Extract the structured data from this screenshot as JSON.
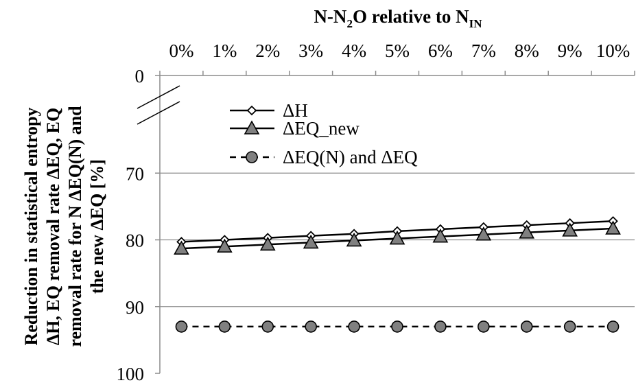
{
  "chart_data": {
    "type": "line",
    "title_main": "N-N",
    "title_sub2": "2",
    "title_mid": "O relative to N",
    "title_subIN": "IN",
    "ylabel_lines": [
      "Reduction in statistical entropy",
      "ΔH, EQ removal rate ΔEQ, EQ",
      "removal rate for N ΔEQ(N) and",
      "the new ΔEQ [%]"
    ],
    "categories": [
      "0%",
      "1%",
      "2%",
      "3%",
      "4%",
      "5%",
      "6%",
      "7%",
      "8%",
      "9%",
      "10%"
    ],
    "y_axis": {
      "reversed": true,
      "broken": true,
      "tick_labels": [
        "0",
        "70",
        "80",
        "90",
        "100"
      ],
      "visible_range": [
        60,
        100
      ]
    },
    "gridlines_at": [
      70,
      80,
      90
    ],
    "series": [
      {
        "name": "ΔH",
        "marker": "diamond",
        "marker_fill": "#ffffff",
        "line": "solid",
        "values": [
          80.3,
          80.0,
          79.7,
          79.4,
          79.1,
          78.7,
          78.4,
          78.1,
          77.8,
          77.5,
          77.2
        ]
      },
      {
        "name": "ΔEQ_new",
        "marker": "triangle",
        "marker_fill": "#808080",
        "line": "solid",
        "values": [
          81.3,
          81.0,
          80.7,
          80.4,
          80.1,
          79.8,
          79.5,
          79.2,
          78.9,
          78.6,
          78.3
        ]
      },
      {
        "name": "ΔEQ(N) and ΔEQ",
        "marker": "circle",
        "marker_fill": "#808080",
        "line": "dashed",
        "values": [
          93.0,
          93.0,
          93.0,
          93.0,
          93.0,
          93.0,
          93.0,
          93.0,
          93.0,
          93.0,
          93.0
        ]
      }
    ],
    "legend_position": "top-left",
    "grid": true
  }
}
